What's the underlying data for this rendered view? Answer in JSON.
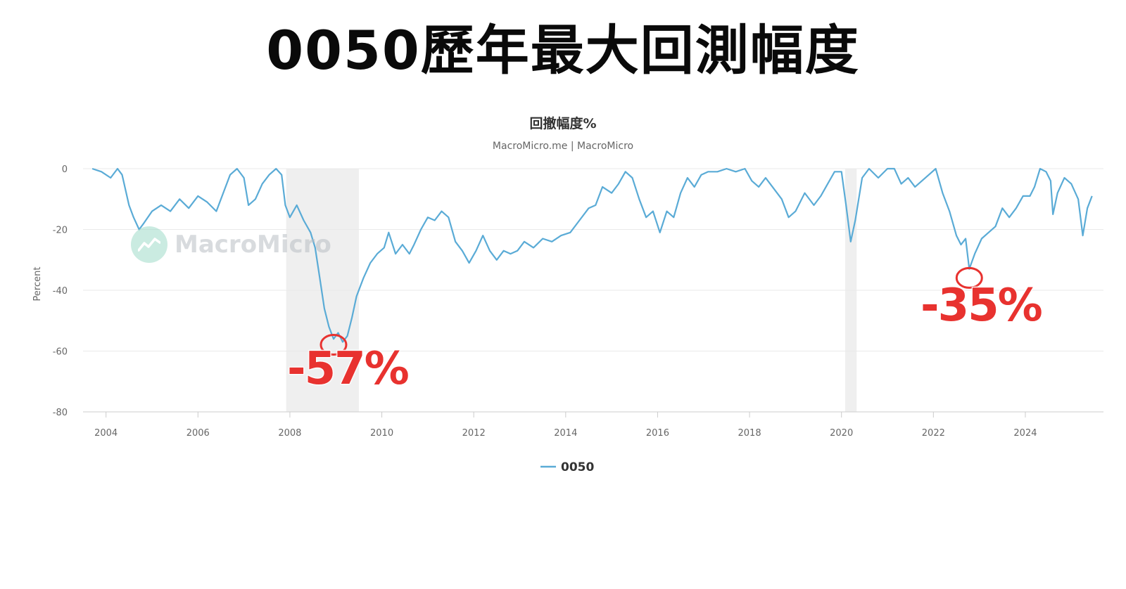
{
  "headline": "0050歷年最大回測幅度",
  "watermark": "MacroMicro",
  "annotations": [
    {
      "text": "-57%",
      "x": 2008.95,
      "y": -57
    },
    {
      "text": "-35%",
      "x": 2022.78,
      "y": -35
    }
  ],
  "colors": {
    "line": "#5aabd6",
    "shade": "#efefef",
    "annotation": "#e8322f",
    "watermark_logo": "#9fdcc9"
  },
  "chart_data": {
    "type": "line",
    "title": "回撤幅度%",
    "subtitle": "MacroMicro.me | MacroMicro",
    "xlabel": "",
    "ylabel": "Percent",
    "xlim": [
      2003.5,
      2025.7
    ],
    "ylim": [
      -80,
      0
    ],
    "x_ticks": [
      "2004",
      "2006",
      "2008",
      "2010",
      "2012",
      "2014",
      "2016",
      "2018",
      "2020",
      "2022",
      "2024"
    ],
    "y_ticks": [
      "0",
      "-20",
      "-40",
      "-60",
      "-80"
    ],
    "grid": true,
    "legend": "bottom-center",
    "recession_shading": [
      [
        2007.92,
        2009.5
      ],
      [
        2020.08,
        2020.33
      ]
    ],
    "series": [
      {
        "name": "0050",
        "points": [
          [
            2003.7,
            0
          ],
          [
            2003.9,
            -1
          ],
          [
            2004.1,
            -3
          ],
          [
            2004.25,
            0
          ],
          [
            2004.35,
            -2
          ],
          [
            2004.5,
            -12
          ],
          [
            2004.6,
            -16
          ],
          [
            2004.72,
            -20
          ],
          [
            2004.82,
            -18
          ],
          [
            2005.0,
            -14
          ],
          [
            2005.2,
            -12
          ],
          [
            2005.4,
            -14
          ],
          [
            2005.6,
            -10
          ],
          [
            2005.8,
            -13
          ],
          [
            2006.0,
            -9
          ],
          [
            2006.2,
            -11
          ],
          [
            2006.4,
            -14
          ],
          [
            2006.55,
            -8
          ],
          [
            2006.7,
            -2
          ],
          [
            2006.85,
            0
          ],
          [
            2007.0,
            -3
          ],
          [
            2007.1,
            -12
          ],
          [
            2007.25,
            -10
          ],
          [
            2007.4,
            -5
          ],
          [
            2007.55,
            -2
          ],
          [
            2007.7,
            0
          ],
          [
            2007.82,
            -2
          ],
          [
            2007.9,
            -12
          ],
          [
            2008.0,
            -16
          ],
          [
            2008.15,
            -12
          ],
          [
            2008.3,
            -17
          ],
          [
            2008.45,
            -21
          ],
          [
            2008.55,
            -26
          ],
          [
            2008.65,
            -36
          ],
          [
            2008.75,
            -46
          ],
          [
            2008.85,
            -52
          ],
          [
            2008.95,
            -56
          ],
          [
            2009.05,
            -54
          ],
          [
            2009.15,
            -57
          ],
          [
            2009.25,
            -55
          ],
          [
            2009.35,
            -49
          ],
          [
            2009.45,
            -42
          ],
          [
            2009.6,
            -36
          ],
          [
            2009.75,
            -31
          ],
          [
            2009.9,
            -28
          ],
          [
            2010.05,
            -26
          ],
          [
            2010.15,
            -21
          ],
          [
            2010.3,
            -28
          ],
          [
            2010.45,
            -25
          ],
          [
            2010.6,
            -28
          ],
          [
            2010.7,
            -25
          ],
          [
            2010.85,
            -20
          ],
          [
            2011.0,
            -16
          ],
          [
            2011.15,
            -17
          ],
          [
            2011.3,
            -14
          ],
          [
            2011.45,
            -16
          ],
          [
            2011.6,
            -24
          ],
          [
            2011.75,
            -27
          ],
          [
            2011.9,
            -31
          ],
          [
            2012.05,
            -27
          ],
          [
            2012.2,
            -22
          ],
          [
            2012.35,
            -27
          ],
          [
            2012.5,
            -30
          ],
          [
            2012.65,
            -27
          ],
          [
            2012.8,
            -28
          ],
          [
            2012.95,
            -27
          ],
          [
            2013.1,
            -24
          ],
          [
            2013.3,
            -26
          ],
          [
            2013.5,
            -23
          ],
          [
            2013.7,
            -24
          ],
          [
            2013.9,
            -22
          ],
          [
            2014.1,
            -21
          ],
          [
            2014.3,
            -17
          ],
          [
            2014.5,
            -13
          ],
          [
            2014.65,
            -12
          ],
          [
            2014.8,
            -6
          ],
          [
            2015.0,
            -8
          ],
          [
            2015.15,
            -5
          ],
          [
            2015.3,
            -1
          ],
          [
            2015.45,
            -3
          ],
          [
            2015.6,
            -10
          ],
          [
            2015.75,
            -16
          ],
          [
            2015.9,
            -14
          ],
          [
            2016.05,
            -21
          ],
          [
            2016.2,
            -14
          ],
          [
            2016.35,
            -16
          ],
          [
            2016.5,
            -8
          ],
          [
            2016.65,
            -3
          ],
          [
            2016.8,
            -6
          ],
          [
            2016.95,
            -2
          ],
          [
            2017.1,
            -1
          ],
          [
            2017.3,
            -1
          ],
          [
            2017.5,
            0
          ],
          [
            2017.7,
            -1
          ],
          [
            2017.9,
            0
          ],
          [
            2018.05,
            -4
          ],
          [
            2018.2,
            -6
          ],
          [
            2018.35,
            -3
          ],
          [
            2018.5,
            -6
          ],
          [
            2018.7,
            -10
          ],
          [
            2018.85,
            -16
          ],
          [
            2019.0,
            -14
          ],
          [
            2019.2,
            -8
          ],
          [
            2019.4,
            -12
          ],
          [
            2019.55,
            -9
          ],
          [
            2019.7,
            -5
          ],
          [
            2019.85,
            -1
          ],
          [
            2020.0,
            -1
          ],
          [
            2020.1,
            -12
          ],
          [
            2020.2,
            -24
          ],
          [
            2020.3,
            -17
          ],
          [
            2020.45,
            -3
          ],
          [
            2020.6,
            0
          ],
          [
            2020.8,
            -3
          ],
          [
            2021.0,
            0
          ],
          [
            2021.15,
            0
          ],
          [
            2021.3,
            -5
          ],
          [
            2021.45,
            -3
          ],
          [
            2021.6,
            -6
          ],
          [
            2021.75,
            -4
          ],
          [
            2021.9,
            -2
          ],
          [
            2022.05,
            0
          ],
          [
            2022.2,
            -8
          ],
          [
            2022.35,
            -14
          ],
          [
            2022.5,
            -22
          ],
          [
            2022.6,
            -25
          ],
          [
            2022.7,
            -23
          ],
          [
            2022.78,
            -33
          ],
          [
            2022.9,
            -28
          ],
          [
            2023.05,
            -23
          ],
          [
            2023.2,
            -21
          ],
          [
            2023.35,
            -19
          ],
          [
            2023.5,
            -13
          ],
          [
            2023.65,
            -16
          ],
          [
            2023.8,
            -13
          ],
          [
            2023.95,
            -9
          ],
          [
            2024.1,
            -9
          ],
          [
            2024.2,
            -6
          ],
          [
            2024.32,
            0
          ],
          [
            2024.45,
            -1
          ],
          [
            2024.55,
            -4
          ],
          [
            2024.6,
            -15
          ],
          [
            2024.7,
            -8
          ],
          [
            2024.85,
            -3
          ],
          [
            2025.0,
            -5
          ],
          [
            2025.15,
            -10
          ],
          [
            2025.25,
            -22
          ],
          [
            2025.35,
            -13
          ],
          [
            2025.45,
            -9
          ]
        ]
      }
    ]
  }
}
